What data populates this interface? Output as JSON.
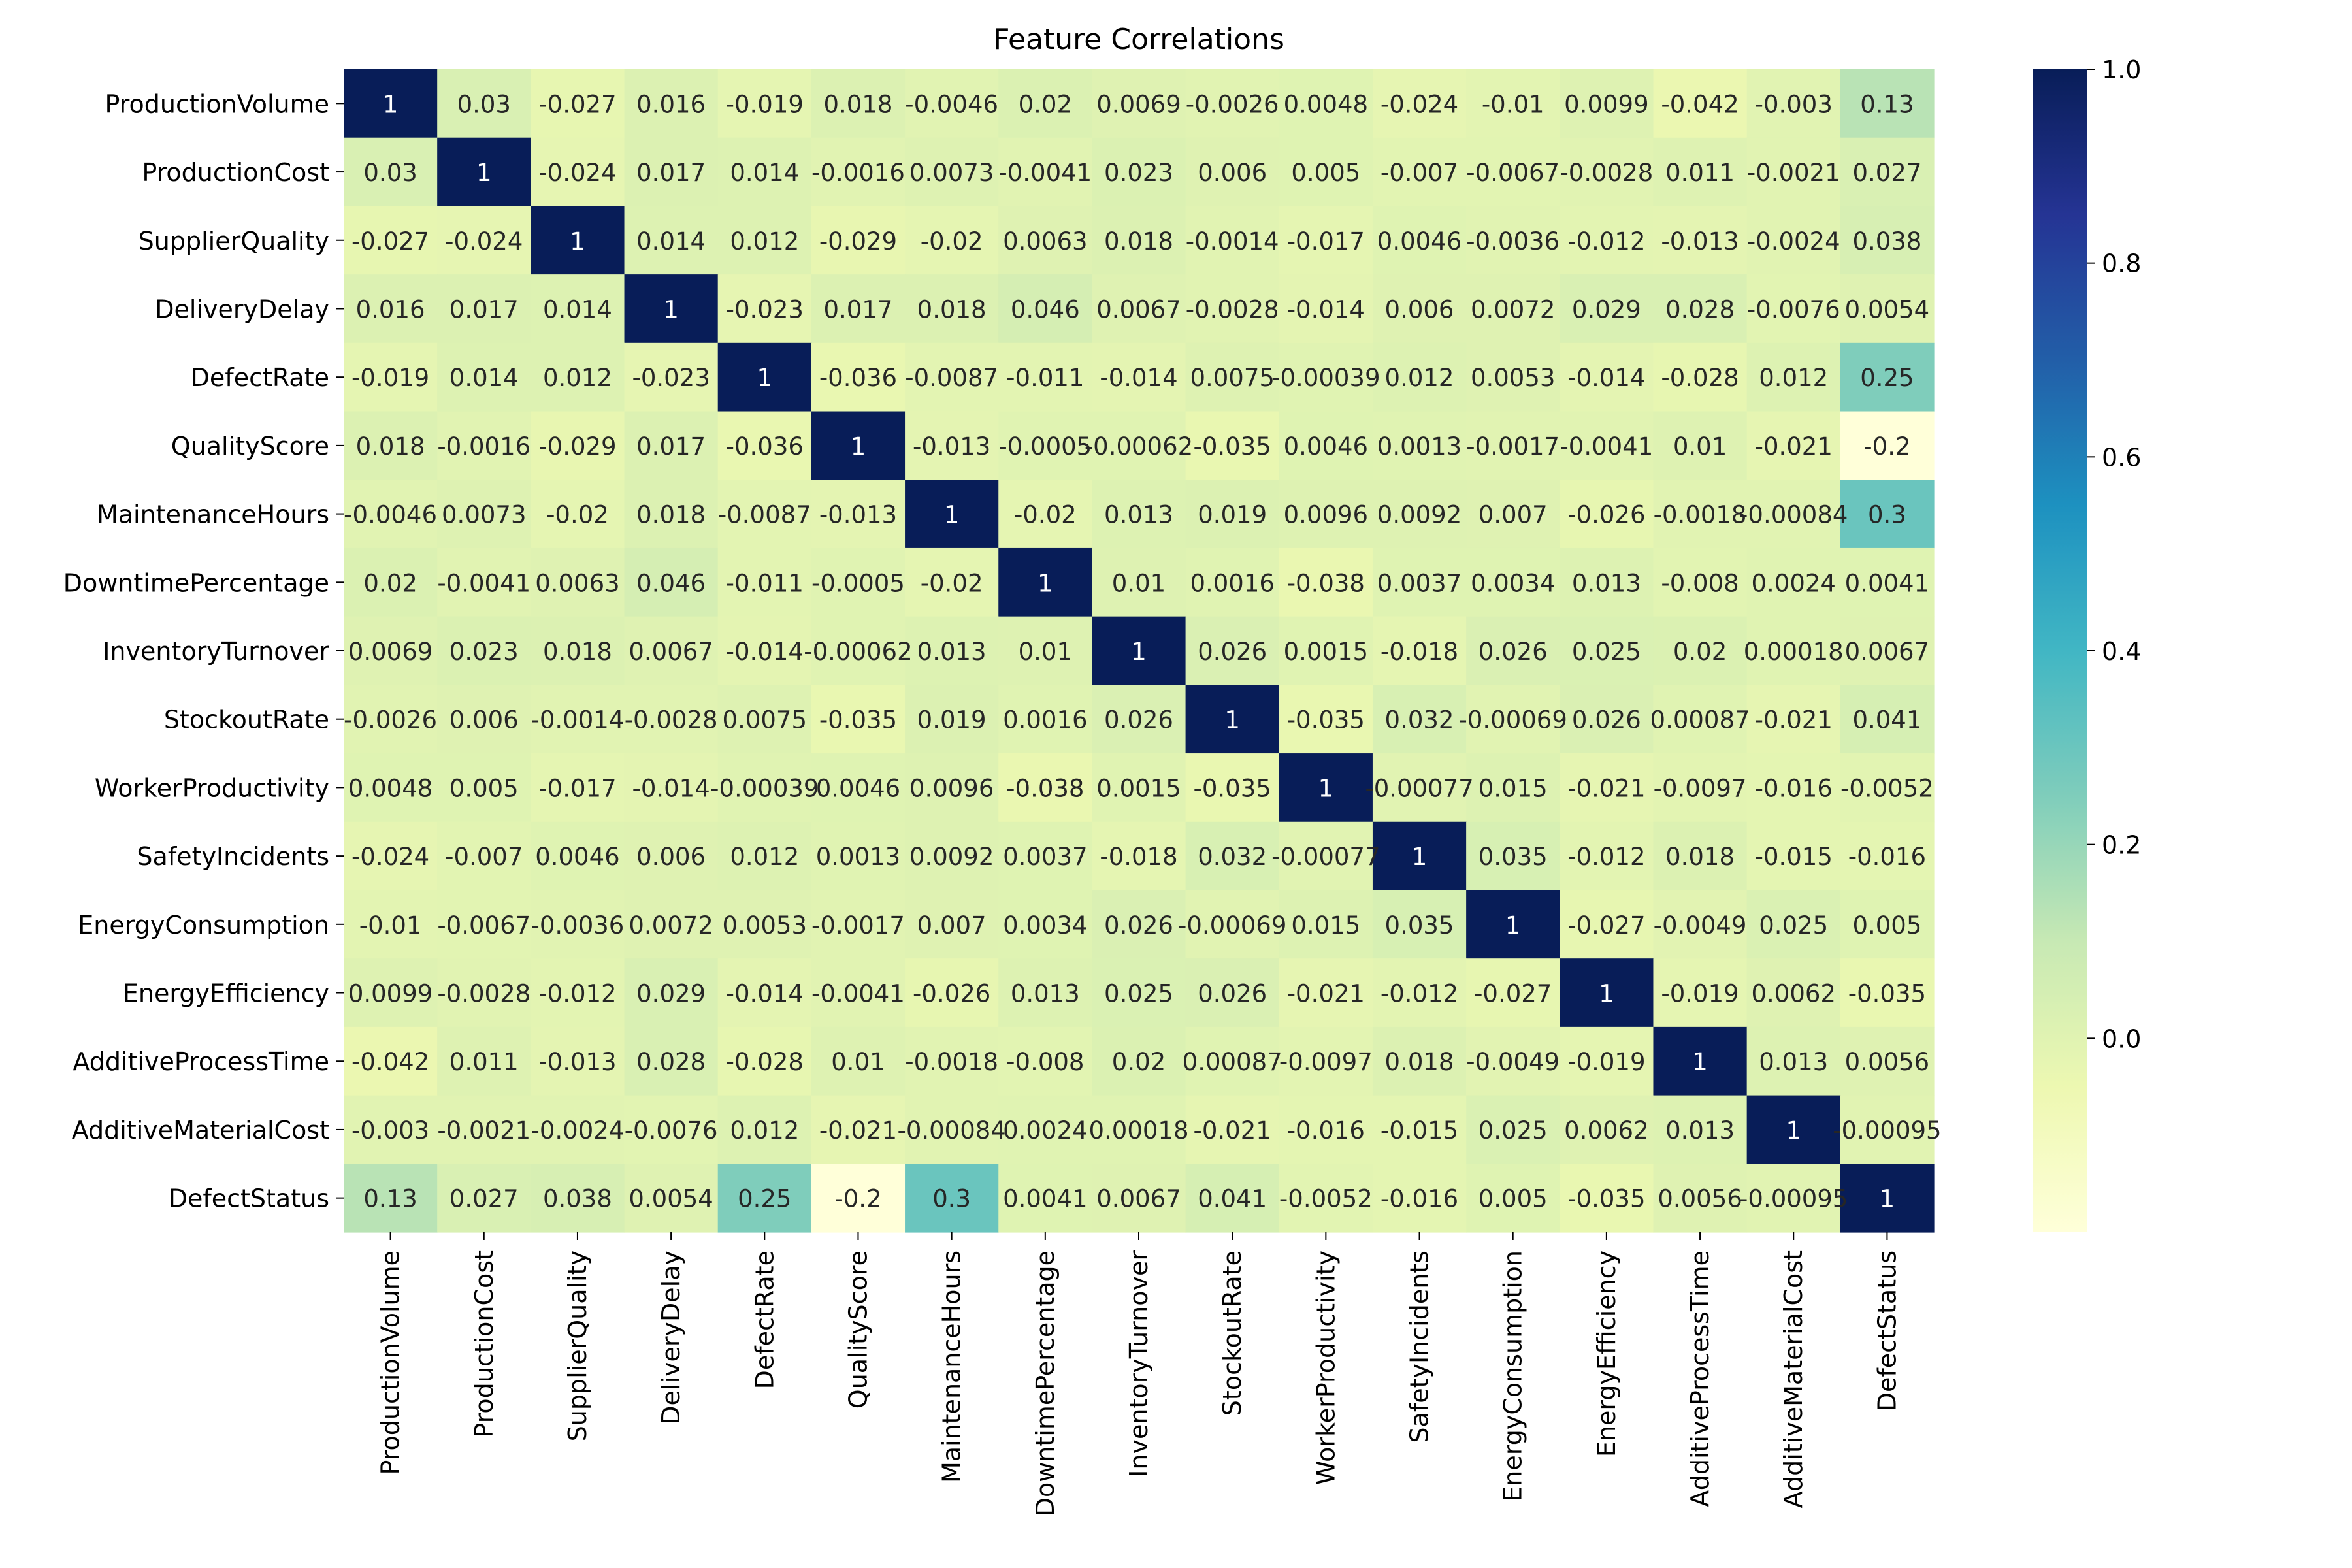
{
  "chart_data": {
    "type": "heatmap",
    "title": "Feature Correlations",
    "xlabel": "",
    "ylabel": "",
    "labels": [
      "ProductionVolume",
      "ProductionCost",
      "SupplierQuality",
      "DeliveryDelay",
      "DefectRate",
      "QualityScore",
      "MaintenanceHours",
      "DowntimePercentage",
      "InventoryTurnover",
      "StockoutRate",
      "WorkerProductivity",
      "SafetyIncidents",
      "EnergyConsumption",
      "EnergyEfficiency",
      "AdditiveProcessTime",
      "AdditiveMaterialCost",
      "DefectStatus"
    ],
    "matrix_display": [
      [
        "1",
        "0.03",
        "-0.027",
        "0.016",
        "-0.019",
        "0.018",
        "-0.0046",
        "0.02",
        "0.0069",
        "-0.0026",
        "0.0048",
        "-0.024",
        "-0.01",
        "0.0099",
        "-0.042",
        "-0.003",
        "0.13"
      ],
      [
        "0.03",
        "1",
        "-0.024",
        "0.017",
        "0.014",
        "-0.0016",
        "0.0073",
        "-0.0041",
        "0.023",
        "0.006",
        "0.005",
        "-0.007",
        "-0.0067",
        "-0.0028",
        "0.011",
        "-0.0021",
        "0.027"
      ],
      [
        "-0.027",
        "-0.024",
        "1",
        "0.014",
        "0.012",
        "-0.029",
        "-0.02",
        "0.0063",
        "0.018",
        "-0.0014",
        "-0.017",
        "0.0046",
        "-0.0036",
        "-0.012",
        "-0.013",
        "-0.0024",
        "0.038"
      ],
      [
        "0.016",
        "0.017",
        "0.014",
        "1",
        "-0.023",
        "0.017",
        "0.018",
        "0.046",
        "0.0067",
        "-0.0028",
        "-0.014",
        "0.006",
        "0.0072",
        "0.029",
        "0.028",
        "-0.0076",
        "0.0054"
      ],
      [
        "-0.019",
        "0.014",
        "0.012",
        "-0.023",
        "1",
        "-0.036",
        "-0.0087",
        "-0.011",
        "-0.014",
        "0.0075",
        "-0.00039",
        "0.012",
        "0.0053",
        "-0.014",
        "-0.028",
        "0.012",
        "0.25"
      ],
      [
        "0.018",
        "-0.0016",
        "-0.029",
        "0.017",
        "-0.036",
        "1",
        "-0.013",
        "-0.0005",
        "-0.00062",
        "-0.035",
        "0.0046",
        "0.0013",
        "-0.0017",
        "-0.0041",
        "0.01",
        "-0.021",
        "-0.2"
      ],
      [
        "-0.0046",
        "0.0073",
        "-0.02",
        "0.018",
        "-0.0087",
        "-0.013",
        "1",
        "-0.02",
        "0.013",
        "0.019",
        "0.0096",
        "0.0092",
        "0.007",
        "-0.026",
        "-0.0018",
        "-0.00084",
        "0.3"
      ],
      [
        "0.02",
        "-0.0041",
        "0.0063",
        "0.046",
        "-0.011",
        "-0.0005",
        "-0.02",
        "1",
        "0.01",
        "0.0016",
        "-0.038",
        "0.0037",
        "0.0034",
        "0.013",
        "-0.008",
        "0.0024",
        "0.0041"
      ],
      [
        "0.0069",
        "0.023",
        "0.018",
        "0.0067",
        "-0.014",
        "-0.00062",
        "0.013",
        "0.01",
        "1",
        "0.026",
        "0.0015",
        "-0.018",
        "0.026",
        "0.025",
        "0.02",
        "0.00018",
        "0.0067"
      ],
      [
        "-0.0026",
        "0.006",
        "-0.0014",
        "-0.0028",
        "0.0075",
        "-0.035",
        "0.019",
        "0.0016",
        "0.026",
        "1",
        "-0.035",
        "0.032",
        "-0.00069",
        "0.026",
        "0.00087",
        "-0.021",
        "0.041"
      ],
      [
        "0.0048",
        "0.005",
        "-0.017",
        "-0.014",
        "-0.00039",
        "0.0046",
        "0.0096",
        "-0.038",
        "0.0015",
        "-0.035",
        "1",
        "-0.00077",
        "0.015",
        "-0.021",
        "-0.0097",
        "-0.016",
        "-0.0052"
      ],
      [
        "-0.024",
        "-0.007",
        "0.0046",
        "0.006",
        "0.012",
        "0.0013",
        "0.0092",
        "0.0037",
        "-0.018",
        "0.032",
        "-0.00077",
        "1",
        "0.035",
        "-0.012",
        "0.018",
        "-0.015",
        "-0.016"
      ],
      [
        "-0.01",
        "-0.0067",
        "-0.0036",
        "0.0072",
        "0.0053",
        "-0.0017",
        "0.007",
        "0.0034",
        "0.026",
        "-0.00069",
        "0.015",
        "0.035",
        "1",
        "-0.027",
        "-0.0049",
        "0.025",
        "0.005"
      ],
      [
        "0.0099",
        "-0.0028",
        "-0.012",
        "0.029",
        "-0.014",
        "-0.0041",
        "-0.026",
        "0.013",
        "0.025",
        "0.026",
        "-0.021",
        "-0.012",
        "-0.027",
        "1",
        "-0.019",
        "0.0062",
        "-0.035"
      ],
      [
        "-0.042",
        "0.011",
        "-0.013",
        "0.028",
        "-0.028",
        "0.01",
        "-0.0018",
        "-0.008",
        "0.02",
        "0.00087",
        "-0.0097",
        "0.018",
        "-0.0049",
        "-0.019",
        "1",
        "0.013",
        "0.0056"
      ],
      [
        "-0.003",
        "-0.0021",
        "-0.0024",
        "-0.0076",
        "0.012",
        "-0.021",
        "-0.00084",
        "0.0024",
        "0.00018",
        "-0.021",
        "-0.016",
        "-0.015",
        "0.025",
        "0.0062",
        "0.013",
        "1",
        "-0.00095"
      ],
      [
        "0.13",
        "0.027",
        "0.038",
        "0.0054",
        "0.25",
        "-0.2",
        "0.3",
        "0.0041",
        "0.0067",
        "0.041",
        "-0.0052",
        "-0.016",
        "0.005",
        "-0.035",
        "0.0056",
        "-0.00095",
        "1"
      ]
    ],
    "colorbar": {
      "colormap": "YlGnBu",
      "range": [
        -0.2,
        1.0
      ],
      "ticks": [
        0.0,
        0.2,
        0.4,
        0.6,
        0.8,
        1.0
      ],
      "tick_labels": [
        "0.0",
        "0.2",
        "0.4",
        "0.6",
        "0.8",
        "1.0"
      ]
    },
    "grid": false
  }
}
